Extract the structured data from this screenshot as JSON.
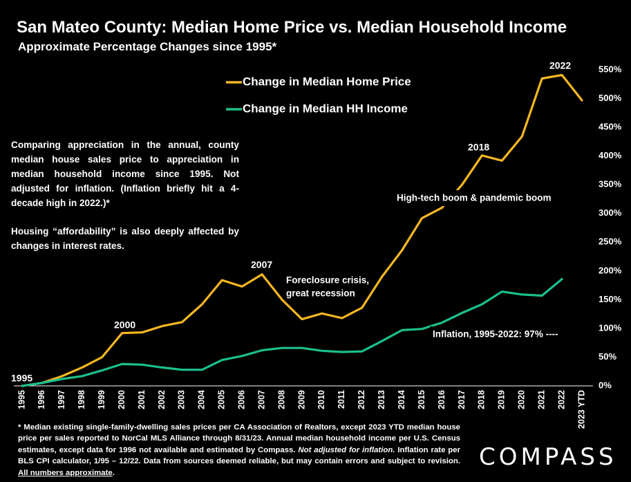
{
  "title": "San Mateo County: Median Home Price vs. Median Household Income",
  "subtitle": "Approximate Percentage Changes since 1995*",
  "description": [
    "Comparing appreciation in the annual, county median house sales price to appreciation in median household income since 1995. Not adjusted for inflation. (Inflation briefly hit a 4-decade high in 2022.)*",
    "Housing “affordability” is also deeply affected by changes in interest rates."
  ],
  "footnote": {
    "part1": "* Median existing single-family-dwelling sales prices per CA Association of Realtors, except 2023 YTD median house price per sales reported to NorCal MLS Alliance through 8/31/23. Annual median household income per U.S. Census estimates, except data for 1996 not available and estimated by Compass. ",
    "italic": "Not adjusted for inflation.",
    "part2": " Inflation rate per BLS CPI calculator, 1/95 – 12/22. Data from sources deemed reliable, but may contain errors and subject to revision. ",
    "underline": "All numbers approximate",
    "end": "."
  },
  "logo": "COMPASS",
  "colors": {
    "home_price": "#F5B722",
    "income": "#1BC08E",
    "background": "#000000"
  },
  "chart_data": {
    "type": "line",
    "categories": [
      "1995",
      "1996",
      "1997",
      "1998",
      "1999",
      "2000",
      "2001",
      "2002",
      "2003",
      "2004",
      "2005",
      "2006",
      "2007",
      "2008",
      "2009",
      "2010",
      "2011",
      "2012",
      "2013",
      "2014",
      "2015",
      "2016",
      "2017",
      "2018",
      "2019",
      "2020",
      "2021",
      "2022",
      "2023 YTD"
    ],
    "series": [
      {
        "name": "Change in Median Home Price",
        "values": [
          0,
          5,
          17,
          32,
          50,
          92,
          93,
          104,
          111,
          142,
          184,
          173,
          194,
          150,
          116,
          126,
          118,
          136,
          190,
          236,
          292,
          310,
          350,
          401,
          392,
          434,
          535,
          541,
          497
        ]
      },
      {
        "name": "Change in Median HH Income",
        "values": [
          0,
          5,
          12,
          17,
          27,
          38,
          37,
          32,
          28,
          28,
          45,
          52,
          62,
          66,
          66,
          61,
          59,
          60,
          78,
          97,
          99,
          110,
          127,
          142,
          164,
          159,
          157,
          186,
          null
        ]
      }
    ],
    "y_ticks": [
      "0%",
      "50%",
      "100%",
      "150%",
      "200%",
      "250%",
      "300%",
      "350%",
      "400%",
      "450%",
      "500%",
      "550%"
    ],
    "ylim": [
      0,
      550
    ],
    "y_axis_side": "right",
    "legend_placement": "top",
    "grid": false,
    "annotations": {
      "y1995": "1995",
      "y2000": "2000",
      "y2007": "2007",
      "y2018": "2018",
      "y2022": "2022",
      "foreclosure_line1": "Foreclosure crisis,",
      "foreclosure_line2": "great recession",
      "boom": "High-tech boom & pandemic boom",
      "inflation": "Inflation, 1995-2022:  97% ----"
    }
  }
}
